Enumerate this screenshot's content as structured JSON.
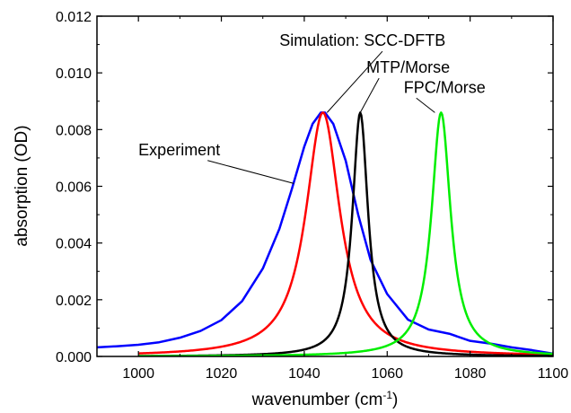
{
  "chart_data": {
    "type": "line",
    "title": "",
    "xlabel": "wavenumber (cm",
    "xlabel_sup": "-1",
    "xlabel_end": ")",
    "ylabel": "absorption (OD)",
    "xlim": [
      990,
      1100
    ],
    "ylim": [
      0,
      0.012
    ],
    "grid": false,
    "legend": "none",
    "x_ticks": [
      1000,
      1020,
      1040,
      1060,
      1080,
      1100
    ],
    "x_tick_labels": [
      "1000",
      "1020",
      "1040",
      "1060",
      "1080",
      "1100"
    ],
    "y_ticks": [
      0,
      0.002,
      0.004,
      0.006,
      0.008,
      0.01,
      0.012
    ],
    "y_tick_labels": [
      "0.000",
      "0.002",
      "0.004",
      "0.006",
      "0.008",
      "0.010",
      "0.012"
    ],
    "series": [
      {
        "key": "experiment",
        "color": "#0000ff",
        "x": [
          990,
          995,
          1000,
          1005,
          1010,
          1015,
          1020,
          1025,
          1030,
          1034,
          1037,
          1040,
          1042,
          1044,
          1045,
          1047,
          1050,
          1053,
          1056,
          1060,
          1065,
          1070,
          1075,
          1080,
          1085,
          1090,
          1095,
          1100
        ],
        "y": [
          0.00032,
          0.00036,
          0.00041,
          0.0005,
          0.00066,
          0.0009,
          0.00128,
          0.00195,
          0.0031,
          0.0045,
          0.0059,
          0.0074,
          0.0082,
          0.0086,
          0.0086,
          0.0082,
          0.0069,
          0.005,
          0.0034,
          0.0022,
          0.0013,
          0.00095,
          0.0008,
          0.00055,
          0.00045,
          0.00032,
          0.00022,
          0.0001
        ]
      },
      {
        "key": "scc-dftb",
        "color": "#ff0000",
        "center": 1044.5,
        "hwhm": 5.0,
        "peak": 0.0086,
        "xrange": [
          1000,
          1100
        ]
      },
      {
        "key": "mtp-morse",
        "color": "#000000",
        "center": 1053.5,
        "hwhm": 2.3,
        "peak": 0.0086,
        "xrange": [
          1000,
          1100
        ]
      },
      {
        "key": "fpc-morse",
        "color": "#00ee00",
        "center": 1073.0,
        "hwhm": 2.8,
        "peak": 0.0086,
        "xrange": [
          1000,
          1100
        ]
      }
    ],
    "annotations": [
      {
        "text": "Simulation: SCC-DFTB",
        "x": 1034,
        "y": 0.01095,
        "target": [
          1045.5,
          0.0086
        ]
      },
      {
        "text": "MTP/Morse",
        "x": 1055,
        "y": 0.01,
        "target": [
          1053.5,
          0.0086
        ]
      },
      {
        "text": "FPC/Morse",
        "x": 1064,
        "y": 0.0093,
        "target": [
          1071.5,
          0.0086
        ]
      },
      {
        "text": "Experiment",
        "x": 1000,
        "y": 0.0071,
        "target": [
          1037.5,
          0.0061
        ]
      }
    ]
  }
}
